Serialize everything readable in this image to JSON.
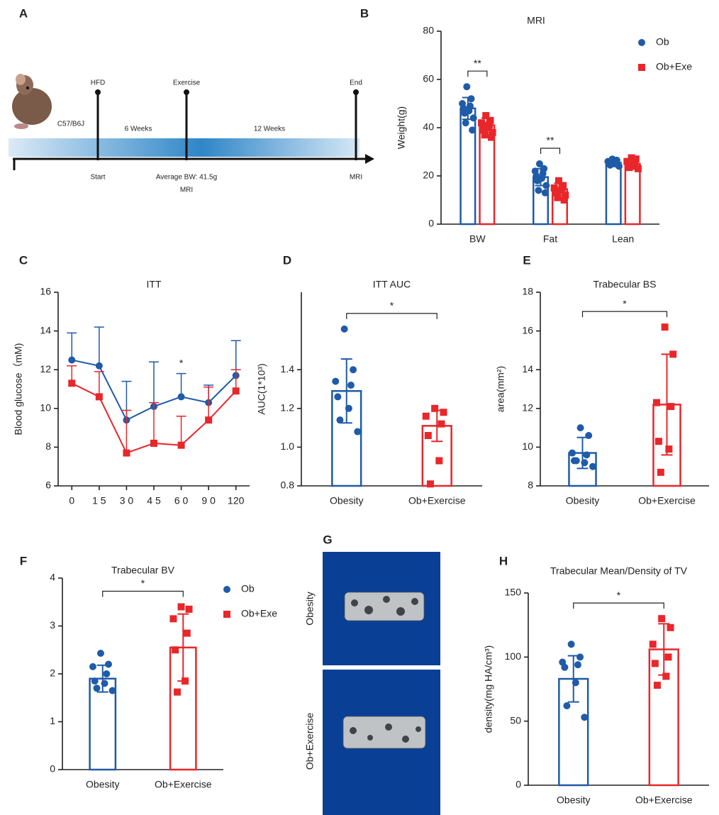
{
  "timeline": {
    "panel": "A",
    "strain": "C57/B6J",
    "periods": [
      "6 Weeks",
      "12 Weeks"
    ],
    "events": [
      {
        "label": "HFD",
        "notes": [
          "Start"
        ]
      },
      {
        "label": "Exercise",
        "notes": [
          "Average BW: 41.5g",
          "MRI"
        ]
      },
      {
        "label": "End",
        "notes": [
          "MRI"
        ]
      }
    ]
  },
  "images": {
    "panel": "G",
    "labels": [
      "Obesity",
      "Ob+Exercise"
    ]
  },
  "chart_data": [
    {
      "type": "bar",
      "panel": "B",
      "title": "MRI",
      "ylabel": "Weight(g)",
      "categories": [
        "BW",
        "Fat",
        "Lean"
      ],
      "ylim": [
        0,
        80
      ],
      "yticks": [
        0,
        20,
        40,
        60,
        80
      ],
      "series": [
        {
          "name": "Ob",
          "color": "#1f5ba8",
          "marker": "circle",
          "values": [
            48,
            19.5,
            25.5
          ],
          "errors": [
            4.5,
            3.5,
            1.5
          ],
          "points": [
            [
              57,
              52,
              50,
              49,
              48,
              47,
              46,
              44,
              42,
              39
            ],
            [
              25,
              23,
              22,
              21,
              20,
              19,
              18,
              16,
              14,
              13
            ],
            [
              27,
              26.5,
              26,
              25.5,
              25,
              25,
              24.5,
              24
            ]
          ]
        },
        {
          "name": "Ob+Exe",
          "color": "#e8272b",
          "marker": "square",
          "values": [
            41,
            14.5,
            25
          ],
          "errors": [
            3,
            2.5,
            2
          ],
          "points": [
            [
              45,
              43,
              42,
              41,
              41,
              40,
              39,
              38,
              37,
              36
            ],
            [
              18,
              16,
              15,
              15,
              14,
              14,
              13,
              12,
              11,
              10
            ],
            [
              27.5,
              27,
              26,
              25,
              24.5,
              24,
              23.5,
              23
            ]
          ]
        }
      ],
      "brackets": [
        {
          "category": 0,
          "label": "**"
        },
        {
          "category": 1,
          "label": "**"
        }
      ]
    },
    {
      "type": "line",
      "panel": "C",
      "title": "ITT",
      "ylabel": "Blood  glucose（mM)",
      "categories": [
        "0",
        "1 5",
        "3 0",
        "4 5",
        "6 0",
        "9 0",
        "120"
      ],
      "ylim": [
        6,
        16
      ],
      "yticks": [
        6,
        8,
        10,
        12,
        14,
        16
      ],
      "series": [
        {
          "name": "Ob",
          "color": "#1f5ba8",
          "marker": "circle",
          "values": [
            12.5,
            12.2,
            9.4,
            10.1,
            10.6,
            10.3,
            11.7
          ],
          "errors": [
            1.4,
            2.0,
            2.0,
            2.3,
            1.2,
            0.9,
            1.8
          ]
        },
        {
          "name": "Ob+Exe",
          "color": "#e8272b",
          "marker": "square",
          "values": [
            11.3,
            10.6,
            7.7,
            8.2,
            8.1,
            9.4,
            10.9
          ],
          "errors": [
            0.9,
            1.3,
            2.2,
            2.1,
            1.5,
            1.7,
            1.1
          ]
        }
      ],
      "annotations": [
        {
          "category": 4,
          "text": "*"
        }
      ]
    },
    {
      "type": "bar",
      "panel": "D",
      "title": "ITT   AUC",
      "ylabel": "AUC(1*10³)",
      "categories": [
        "Obesity",
        "Ob+Exercise"
      ],
      "ylim": [
        0.8,
        1.8
      ],
      "yticks": [
        0.8,
        {
          "value": 1,
          "label": "1.0"
        },
        1.2,
        1.4
      ],
      "colors": [
        "#1f5ba8",
        "#e8272b"
      ],
      "markers": [
        "circle",
        "square"
      ],
      "values": [
        1.29,
        1.11
      ],
      "errors": [
        0.165,
        0.08
      ],
      "points": [
        [
          1.61,
          1.4,
          1.34,
          1.32,
          1.26,
          1.2,
          1.14,
          1.08
        ],
        [
          1.2,
          1.18,
          1.16,
          1.12,
          1.06,
          0.93,
          0.81
        ]
      ],
      "brackets": [
        {
          "from": 0,
          "to": 1,
          "label": "*"
        }
      ]
    },
    {
      "type": "bar",
      "panel": "E",
      "title": "Trabecular BS",
      "ylabel": "area(mm²)",
      "categories": [
        "Obesity",
        "Ob+Exercise"
      ],
      "ylim": [
        8,
        18
      ],
      "yticks": [
        8,
        10,
        12,
        14,
        16,
        18
      ],
      "colors": [
        "#1f5ba8",
        "#e8272b"
      ],
      "markers": [
        "circle",
        "square"
      ],
      "values": [
        9.7,
        12.2
      ],
      "errors": [
        0.8,
        2.6
      ],
      "points": [
        [
          11,
          10.6,
          9.7,
          9.6,
          9.3,
          9.2,
          9.3,
          9.0
        ],
        [
          16.2,
          14.8,
          12.3,
          12.1,
          10.3,
          9.9,
          8.7
        ]
      ],
      "brackets": [
        {
          "from": 0,
          "to": 1,
          "label": "*"
        }
      ]
    },
    {
      "type": "bar",
      "panel": "F",
      "title": "Trabecular BV",
      "categories": [
        "Obesity",
        "Ob+Exercise"
      ],
      "ylim": [
        0,
        4
      ],
      "yticks": [
        0,
        1,
        2,
        3,
        4
      ],
      "legend": [
        "Ob",
        "Ob+Exe"
      ],
      "colors": [
        "#1f5ba8",
        "#e8272b"
      ],
      "markers": [
        "circle",
        "square"
      ],
      "values": [
        1.9,
        2.55
      ],
      "errors": [
        0.28,
        0.7
      ],
      "points": [
        [
          2.43,
          2.2,
          2.15,
          2.0,
          1.85,
          1.8,
          1.7,
          1.65
        ],
        [
          3.4,
          3.35,
          3.15,
          2.85,
          2.5,
          1.85,
          1.62
        ]
      ],
      "brackets": [
        {
          "from": 0,
          "to": 1,
          "label": "*"
        }
      ]
    },
    {
      "type": "bar",
      "panel": "H",
      "title": "Trabecular Mean/Density of TV",
      "ylabel": "density(mg HA/cm³)",
      "categories": [
        "Obesity",
        "Ob+Exercise"
      ],
      "ylim": [
        0,
        150
      ],
      "yticks": [
        0,
        50,
        100,
        150
      ],
      "colors": [
        "#1f5ba8",
        "#e8272b"
      ],
      "markers": [
        "circle",
        "square"
      ],
      "values": [
        83,
        106
      ],
      "errors": [
        18,
        20
      ],
      "points": [
        [
          110,
          100,
          96,
          94,
          92,
          80,
          62,
          53
        ],
        [
          130,
          123,
          110,
          100,
          95,
          85,
          78
        ]
      ],
      "brackets": [
        {
          "from": 0,
          "to": 1,
          "label": "*"
        }
      ]
    }
  ]
}
